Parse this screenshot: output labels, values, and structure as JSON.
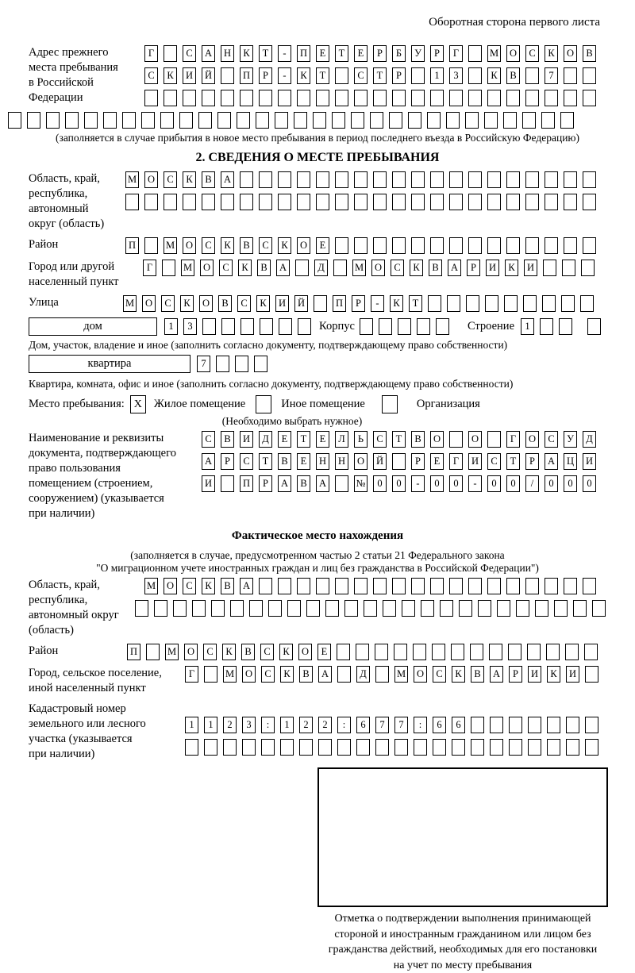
{
  "page_header": "Оборотная сторона первого листа",
  "prev_address": {
    "label_lines": [
      "Адрес прежнего",
      "места пребывания",
      "в Российской",
      "Федерации"
    ],
    "rows": [
      {
        "text": "Г САНКТ-ПЕТЕРБУРГ МОСКОВ",
        "count": 24
      },
      {
        "text": "СКИЙ ПР-КТ СТР 13 КВ 7",
        "count": 24
      },
      {
        "text": "",
        "count": 24
      },
      {
        "text": "",
        "count": 30
      }
    ],
    "note": "(заполняется в случае прибытия в новое место пребывания в период последнего въезда в Российскую Федерацию)"
  },
  "section2": {
    "title": "2. СВЕДЕНИЯ О МЕСТЕ ПРЕБЫВАНИЯ",
    "region": {
      "label_lines": [
        "Область, край,",
        "республика,",
        "автономный",
        "округ (область)"
      ],
      "rows": [
        {
          "text": "МОСКВА",
          "count": 25
        },
        {
          "text": "",
          "count": 25
        }
      ]
    },
    "district": {
      "label": "Район",
      "row": {
        "text": "П МОСКВСКОЕ",
        "count": 25
      }
    },
    "city": {
      "label_lines": [
        "Город или другой",
        "населенный пункт"
      ],
      "row": {
        "text": "Г МОСКВА Д МОСКВАРИКИ",
        "count": 24
      }
    },
    "street": {
      "label": "Улица",
      "row": {
        "text": "МОСКОВСКИЙ ПР-КТ",
        "count": 25
      }
    },
    "house": {
      "box_label": "дом",
      "cells": {
        "text": "13",
        "count": 8
      },
      "korpus_label": "Корпус",
      "korpus_cells": {
        "text": "",
        "count": 5
      },
      "stroenie_label": "Строение",
      "stroenie_cells": {
        "text": "1",
        "count": 4
      },
      "note": "Дом, участок, владение и иное (заполнить согласно документу, подтверждающему право собственности)"
    },
    "apartment": {
      "box_label": "квартира",
      "cells": {
        "text": "7",
        "count": 4
      },
      "note": "Квартира, комната, офис и иное (заполнить согласно документу, подтверждающему право собственности)"
    },
    "place_of_stay": {
      "label": "Место пребывания:",
      "options": [
        {
          "label": "Жилое помещение",
          "mark": "X"
        },
        {
          "label": "Иное помещение",
          "mark": ""
        },
        {
          "label": "Организация",
          "mark": ""
        }
      ],
      "note": "(Необходимо выбрать нужное)"
    },
    "document": {
      "label_lines": [
        "Наименование и реквизиты",
        "документа, подтверждающего",
        "право пользования",
        "помещением (строением,",
        "сооружением) (указывается",
        "при наличии)"
      ],
      "rows": [
        {
          "text": "СВИДЕТЕЛЬСТВО О ГОСУД",
          "count": 21
        },
        {
          "text": "АРСТВЕННОЙ РЕГИСТРАЦИ",
          "count": 21
        },
        {
          "text": "И ПРАВА №00-00-00/000",
          "count": 21
        }
      ]
    }
  },
  "actual_location": {
    "title": "Фактическое место нахождения",
    "note_lines": [
      "(заполняется в случае, предусмотренном частью 2 статьи 21 Федерального закона",
      "\"О миграционном учете иностранных граждан и лиц без гражданства в Российской Федерации\")"
    ],
    "region": {
      "label_lines": [
        "Область, край,",
        "республика,",
        "автономный округ",
        "(область)"
      ],
      "rows": [
        {
          "text": "МОСКВА",
          "count": 24
        },
        {
          "text": "",
          "count": 25
        }
      ]
    },
    "district": {
      "label": "Район",
      "row": {
        "text": "П МОСКВСКОЕ",
        "count": 25
      }
    },
    "city": {
      "label_lines": [
        "Город, сельское поселение,",
        "иной населенный пункт"
      ],
      "row": {
        "text": "Г МОСКВА Д МОСКВАРИКИ",
        "count": 22
      }
    },
    "cadastre": {
      "label_lines": [
        "Кадастровый номер",
        "земельного или лесного",
        "участка (указывается",
        "при наличии)"
      ],
      "rows": [
        {
          "text": "1123:122:677:66",
          "count": 22
        },
        {
          "text": "",
          "count": 22
        }
      ]
    }
  },
  "confirmation": {
    "caption_lines": [
      "Отметка о подтверждении выполнения принимающей",
      "стороной и иностранным гражданином или лицом без",
      "гражданства действий, необходимых для его постановки",
      "на учет по месту пребывания"
    ]
  }
}
